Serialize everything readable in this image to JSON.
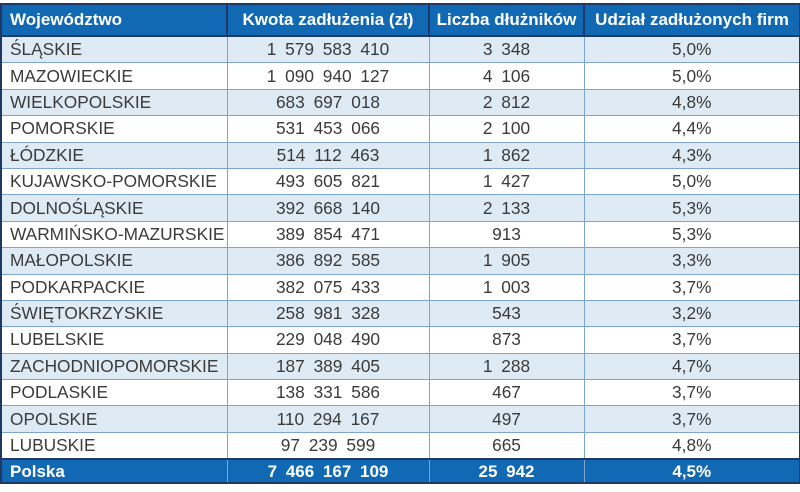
{
  "chart_data": {
    "type": "table",
    "columns": [
      "Województwo",
      "Kwota zadłużenia (zł)",
      "Liczba dłużników",
      "Udział zadłużonych firm"
    ],
    "rows": [
      [
        "ŚLĄSKIE",
        "1 579 583 410",
        "3 348",
        "5,0%"
      ],
      [
        "MAZOWIECKIE",
        "1 090 940 127",
        "4 106",
        "5,0%"
      ],
      [
        "WIELKOPOLSKIE",
        "683 697 018",
        "2 812",
        "4,8%"
      ],
      [
        "POMORSKIE",
        "531 453 066",
        "2 100",
        "4,4%"
      ],
      [
        "ŁÓDZKIE",
        "514 112 463",
        "1 862",
        "4,3%"
      ],
      [
        "KUJAWSKO-POMORSKIE",
        "493 605 821",
        "1 427",
        "5,0%"
      ],
      [
        "DOLNOŚLĄSKIE",
        "392 668 140",
        "2 133",
        "5,3%"
      ],
      [
        "WARMIŃSKO-MAZURSKIE",
        "389 854 471",
        "913",
        "5,3%"
      ],
      [
        "MAŁOPOLSKIE",
        "386 892 585",
        "1 905",
        "3,3%"
      ],
      [
        "PODKARPACKIE",
        "382 075 433",
        "1 003",
        "3,7%"
      ],
      [
        "ŚWIĘTOKRZYSKIE",
        "258 981 328",
        "543",
        "3,2%"
      ],
      [
        "LUBELSKIE",
        "229 048 490",
        "873",
        "3,7%"
      ],
      [
        "ZACHODNIOPOMORSKIE",
        "187 389 405",
        "1 288",
        "4,7%"
      ],
      [
        "PODLASKIE",
        "138 331 586",
        "467",
        "3,7%"
      ],
      [
        "OPOLSKIE",
        "110 294 167",
        "497",
        "3,7%"
      ],
      [
        "LUBUSKIE",
        "97 239 599",
        "665",
        "4,8%"
      ]
    ],
    "footer": [
      "Polska",
      "7 466 167 109",
      "25 942",
      "4,5%"
    ]
  },
  "colors": {
    "header_fill": "#1169B4",
    "alt_row_fill": "#DEEBF5",
    "grid_line": "#7EA6CC",
    "outer_border": "#1F3864",
    "header_text": "#FFFFFF",
    "body_text": "#3B3B3B"
  }
}
